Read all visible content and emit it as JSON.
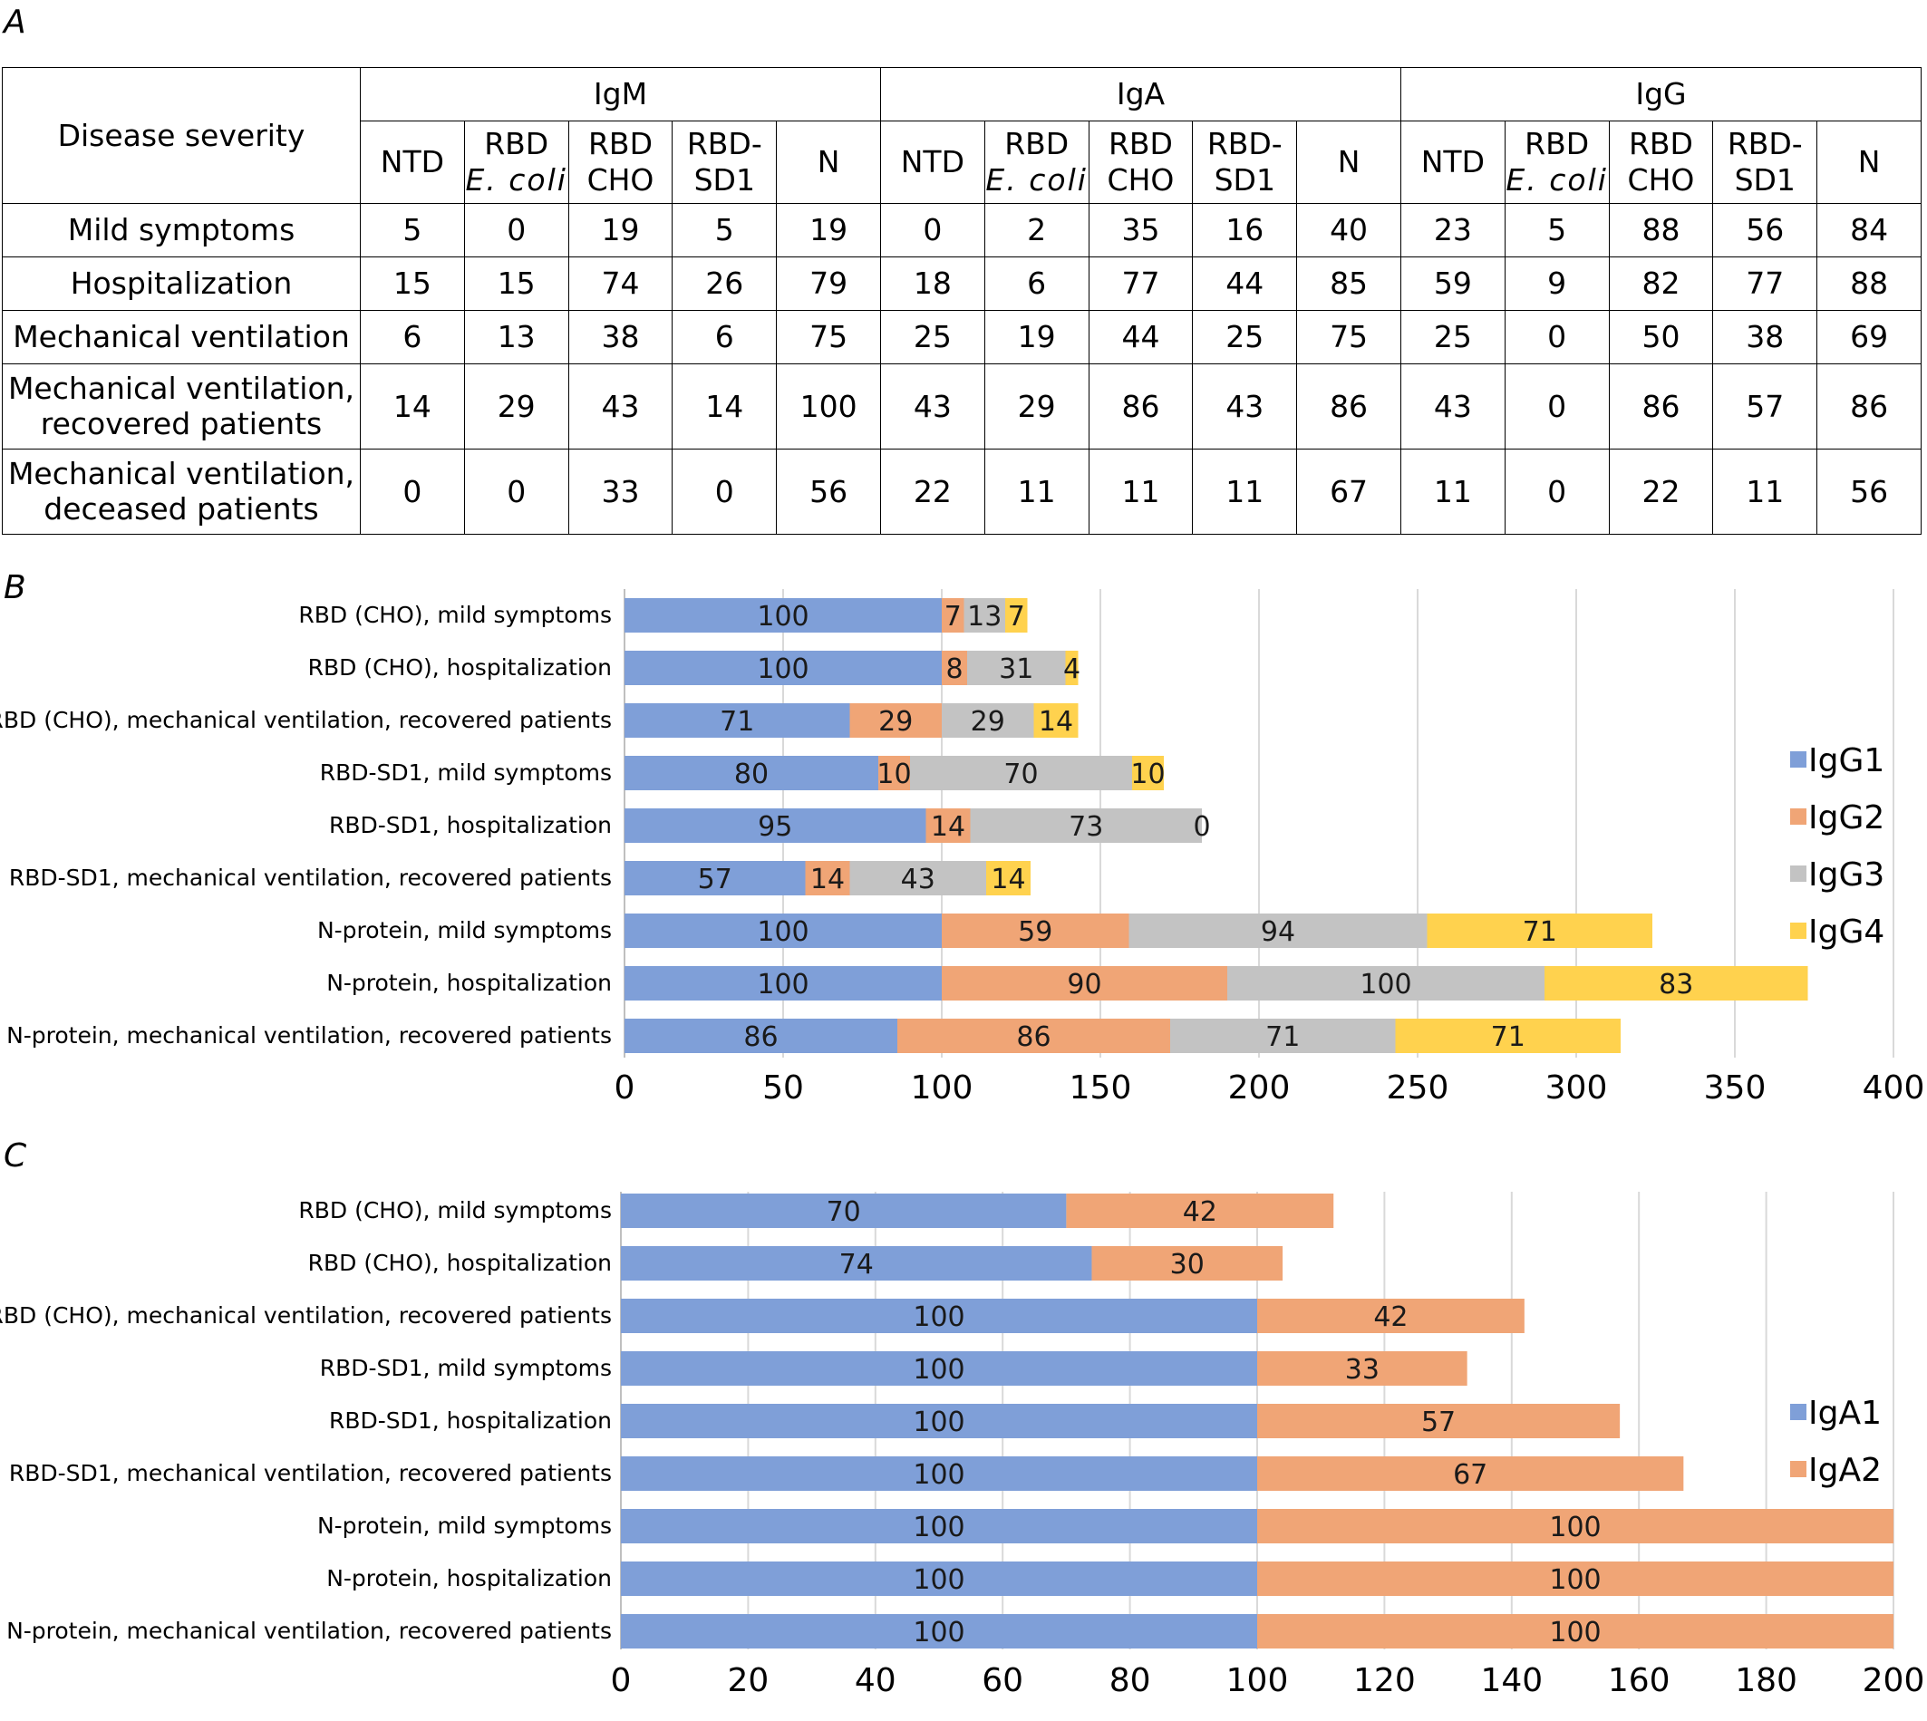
{
  "panel_labels": {
    "a": "A",
    "b": "B",
    "c": "C"
  },
  "table": {
    "corner_header": "Disease severity",
    "groups": [
      "IgM",
      "IgA",
      "IgG"
    ],
    "subheaders": [
      {
        "line1": "NTD",
        "line2": ""
      },
      {
        "line1": "RBD",
        "line2": "E. coli"
      },
      {
        "line1": "RBD",
        "line2": "CHO"
      },
      {
        "line1": "RBD-",
        "line2": "SD1"
      },
      {
        "line1": "N",
        "line2": ""
      }
    ],
    "rows": [
      {
        "label": "Mild symptoms",
        "values": [
          "5",
          "0",
          "19",
          "5",
          "19",
          "0",
          "2",
          "35",
          "16",
          "40",
          "23",
          "5",
          "88",
          "56",
          "84"
        ]
      },
      {
        "label": "Hospitalization",
        "values": [
          "15",
          "15",
          "74",
          "26",
          "79",
          "18",
          "6",
          "77",
          "44",
          "85",
          "59",
          "9",
          "82",
          "77",
          "88"
        ]
      },
      {
        "label": "Mechanical ventilation",
        "values": [
          "6",
          "13",
          "38",
          "6",
          "75",
          "25",
          "19",
          "44",
          "25",
          "75",
          "25",
          "0",
          "50",
          "38",
          "69"
        ]
      },
      {
        "label": "Mechanical ventilation, recovered patients",
        "values": [
          "14",
          "29",
          "43",
          "14",
          "100",
          "43",
          "29",
          "86",
          "43",
          "86",
          "43",
          "0",
          "86",
          "57",
          "86"
        ]
      },
      {
        "label": "Mechanical ventilation, deceased patients",
        "values": [
          "0",
          "0",
          "33",
          "0",
          "56",
          "22",
          "11",
          "11",
          "11",
          "67",
          "11",
          "0",
          "22",
          "11",
          "56"
        ]
      }
    ]
  },
  "chart_data": [
    {
      "type": "bar",
      "orientation": "horizontal",
      "stacked": true,
      "panel": "B",
      "categories": [
        "RBD (CHO), mild symptoms",
        "RBD (CHO), hospitalization",
        "RBD (CHO), mechanical ventilation, recovered patients",
        "RBD-SD1, mild symptoms",
        "RBD-SD1, hospitalization",
        "RBD-SD1, mechanical ventilation, recovered patients",
        "N-protein, mild symptoms",
        "N-protein, hospitalization",
        "N-protein, mechanical ventilation, recovered patients"
      ],
      "series": [
        {
          "name": "IgG1",
          "color": "#7f9fd8",
          "values": [
            100,
            100,
            71,
            80,
            95,
            57,
            100,
            100,
            86
          ]
        },
        {
          "name": "IgG2",
          "color": "#f0a576",
          "values": [
            7,
            8,
            29,
            10,
            14,
            14,
            59,
            90,
            86
          ]
        },
        {
          "name": "IgG3",
          "color": "#c3c3c3",
          "values": [
            13,
            31,
            29,
            70,
            73,
            43,
            94,
            100,
            71
          ]
        },
        {
          "name": "IgG4",
          "color": "#ffd24e",
          "values": [
            7,
            4,
            14,
            10,
            0,
            14,
            71,
            83,
            71
          ]
        }
      ],
      "xlim": [
        0,
        400
      ],
      "xticks": [
        0,
        50,
        100,
        150,
        200,
        250,
        300,
        350,
        400
      ],
      "grid": true,
      "legend": "right"
    },
    {
      "type": "bar",
      "orientation": "horizontal",
      "stacked": true,
      "panel": "C",
      "categories": [
        "RBD (CHO), mild symptoms",
        "RBD (CHO), hospitalization",
        "RBD (CHO), mechanical ventilation, recovered patients",
        "RBD-SD1, mild symptoms",
        "RBD-SD1, hospitalization",
        "RBD-SD1, mechanical ventilation, recovered patients",
        "N-protein, mild symptoms",
        "N-protein, hospitalization",
        "N-protein, mechanical ventilation, recovered patients"
      ],
      "series": [
        {
          "name": "IgA1",
          "color": "#7f9fd8",
          "values": [
            70,
            74,
            100,
            100,
            100,
            100,
            100,
            100,
            100
          ]
        },
        {
          "name": "IgA2",
          "color": "#f0a576",
          "values": [
            42,
            30,
            42,
            33,
            57,
            67,
            100,
            100,
            100
          ]
        }
      ],
      "xlim": [
        0,
        200
      ],
      "xticks": [
        0,
        20,
        40,
        60,
        80,
        100,
        120,
        140,
        160,
        180,
        200
      ],
      "grid": true,
      "legend": "right"
    }
  ]
}
